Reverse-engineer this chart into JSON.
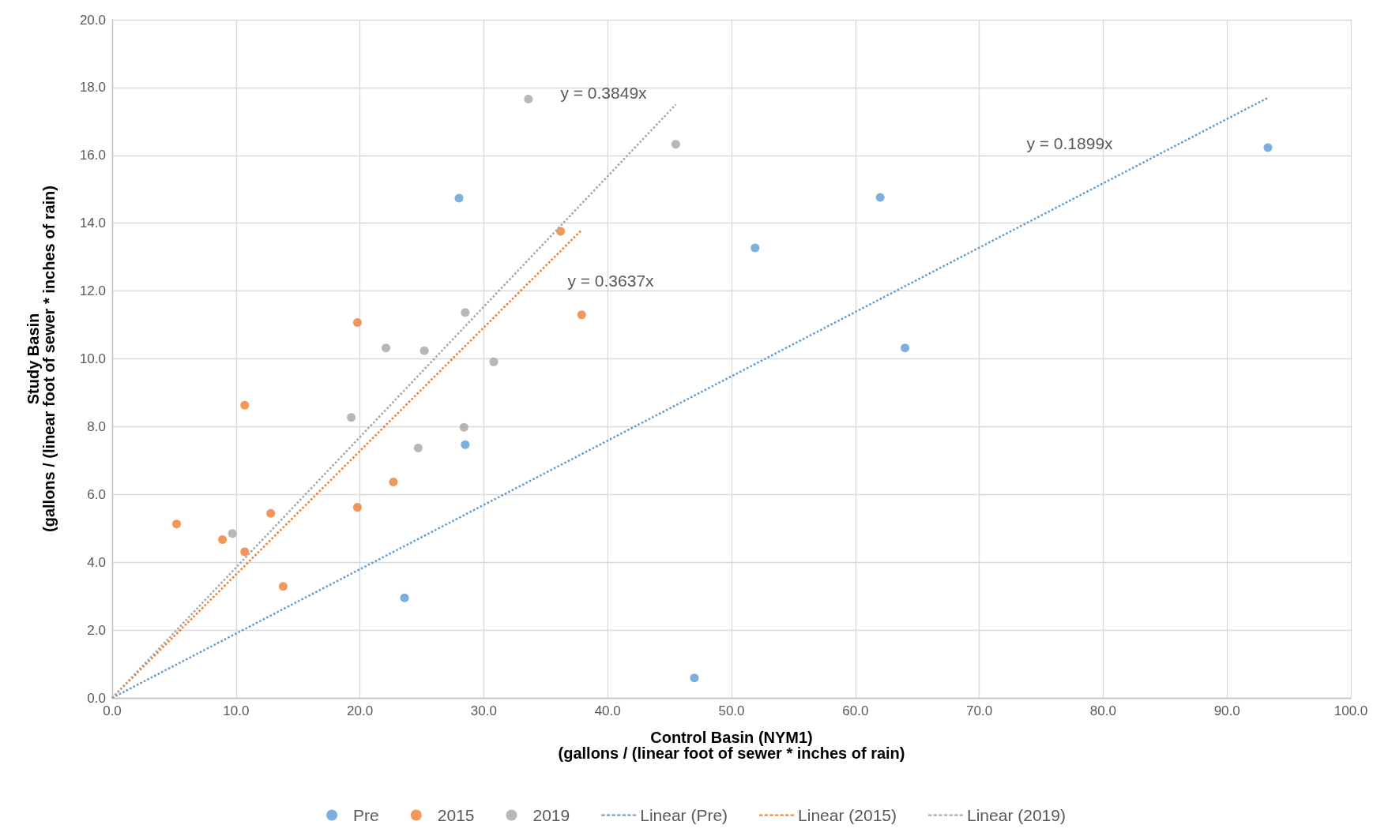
{
  "chart_data": {
    "type": "scatter",
    "xlabel": "Control Basin (NYM1)\n(gallons / (linear foot of sewer * inches of rain)",
    "ylabel": "Study Basin\n(gallons / (linear foot of sewer * inches of rain)",
    "xlim": [
      0,
      100
    ],
    "ylim": [
      0,
      20
    ],
    "xticks": [
      {
        "value": 0,
        "label": "0.0"
      },
      {
        "value": 10,
        "label": "10.0"
      },
      {
        "value": 20,
        "label": "20.0"
      },
      {
        "value": 30,
        "label": "30.0"
      },
      {
        "value": 40,
        "label": "40.0"
      },
      {
        "value": 50,
        "label": "50.0"
      },
      {
        "value": 60,
        "label": "60.0"
      },
      {
        "value": 70,
        "label": "70.0"
      },
      {
        "value": 80,
        "label": "80.0"
      },
      {
        "value": 90,
        "label": "90.0"
      },
      {
        "value": 100,
        "label": "100.0"
      }
    ],
    "yticks": [
      {
        "value": 0,
        "label": "0.0"
      },
      {
        "value": 2,
        "label": "2.0"
      },
      {
        "value": 4,
        "label": "4.0"
      },
      {
        "value": 6,
        "label": "6.0"
      },
      {
        "value": 8,
        "label": "8.0"
      },
      {
        "value": 10,
        "label": "10.0"
      },
      {
        "value": 12,
        "label": "12.0"
      },
      {
        "value": 14,
        "label": "14.0"
      },
      {
        "value": 16,
        "label": "16.0"
      },
      {
        "value": 18,
        "label": "18.0"
      },
      {
        "value": 20,
        "label": "20.0"
      }
    ],
    "grid": true,
    "legend": "bottom",
    "marker": "circle",
    "series": [
      {
        "name": "Pre",
        "color": "#5b9bd5",
        "x": [
          28.0,
          28.5,
          23.6,
          47.0,
          51.9,
          62.0,
          64.0,
          93.3
        ],
        "values": [
          14.74,
          7.47,
          2.95,
          0.59,
          13.27,
          14.76,
          10.32,
          16.23
        ]
      },
      {
        "name": "2015",
        "color": "#ed7d31",
        "x": [
          5.2,
          8.9,
          10.7,
          10.7,
          12.8,
          13.8,
          19.8,
          19.8,
          22.7,
          36.2,
          37.9
        ],
        "values": [
          5.13,
          4.67,
          8.63,
          4.31,
          5.44,
          3.29,
          11.07,
          5.62,
          6.37,
          13.76,
          11.3
        ]
      },
      {
        "name": "2019",
        "color": "#a5a5a5",
        "x": [
          9.7,
          19.3,
          22.1,
          24.7,
          25.2,
          28.4,
          28.5,
          30.8,
          33.6,
          45.5
        ],
        "values": [
          4.85,
          8.27,
          10.32,
          7.37,
          10.24,
          7.98,
          11.37,
          9.91,
          17.66,
          16.33
        ]
      },
      {
        "name": "Linear (Pre)",
        "type": "line",
        "line_style": "dotted",
        "marker": "none",
        "color": "#5b9bd5",
        "x": [
          0,
          93.3
        ],
        "values": [
          0,
          17.7
        ]
      },
      {
        "name": "Linear (2015)",
        "type": "line",
        "line_style": "dotted",
        "marker": "none",
        "color": "#ed7d31",
        "x": [
          0,
          37.9
        ],
        "values": [
          0,
          13.8
        ]
      },
      {
        "name": "Linear (2019)",
        "type": "line",
        "line_style": "dotted",
        "marker": "none",
        "color": "#a5a5a5",
        "x": [
          0,
          45.5
        ],
        "values": [
          0,
          17.5
        ]
      }
    ],
    "annotations": [
      "y = 0.3849x",
      "y = 0.3637x",
      "y = 0.1899x"
    ]
  }
}
